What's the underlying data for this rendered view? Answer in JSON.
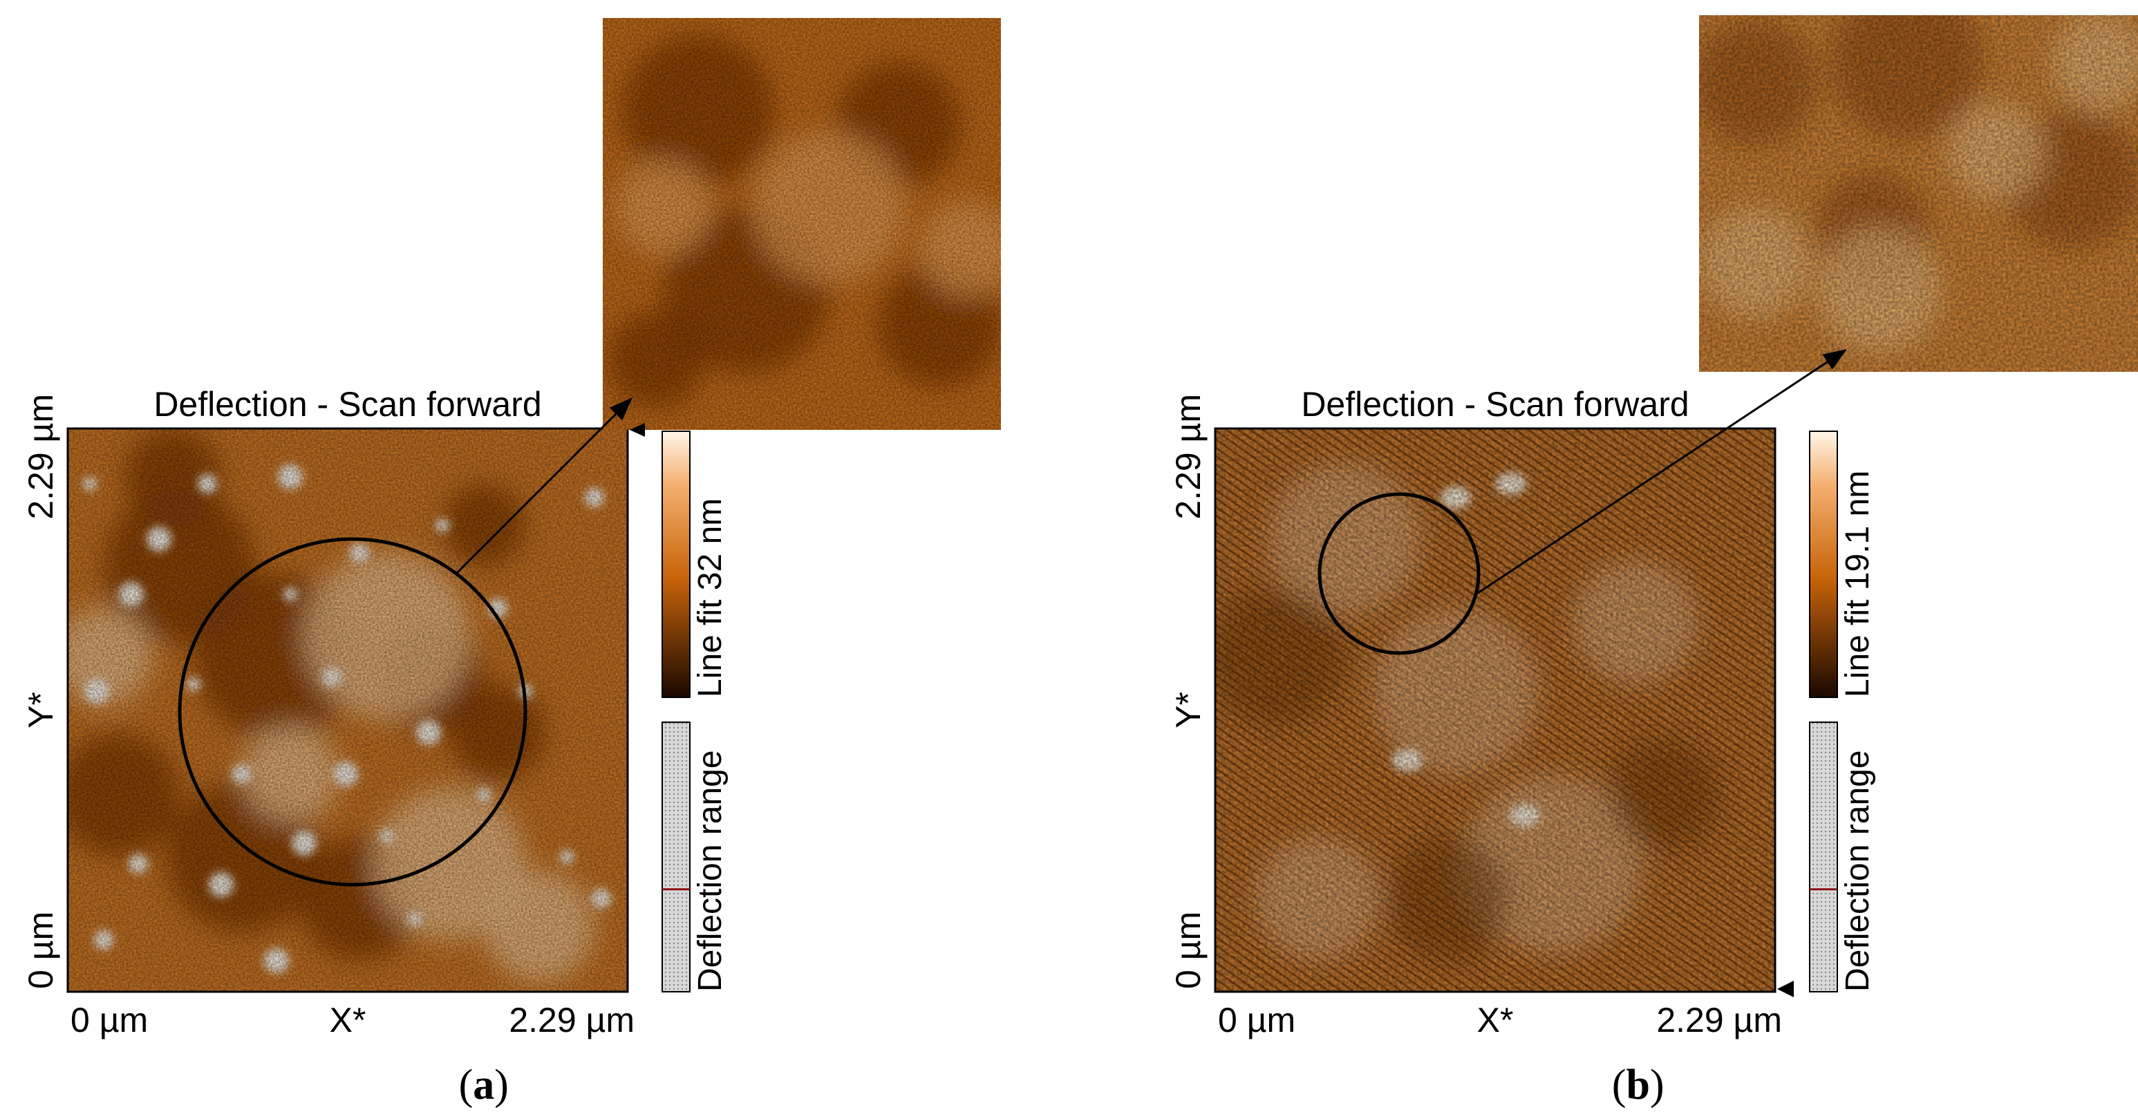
{
  "panels": [
    {
      "id": "a",
      "title": "Deflection - Scan forward",
      "x_axis": {
        "min_label": "0 µm",
        "name": "X*",
        "max_label": "2.29 µm"
      },
      "y_axis": {
        "min_label": "0 µm",
        "name": "Y*",
        "max_label": "2.29 µm"
      },
      "colorbar_label": "Line fit 32 nm",
      "range_bar_label": "Deflection range",
      "caption_letter": "a"
    },
    {
      "id": "b",
      "title": "Deflection - Scan forward",
      "x_axis": {
        "min_label": "0 µm",
        "name": "X*",
        "max_label": "2.29 µm"
      },
      "y_axis": {
        "min_label": "0 µm",
        "name": "Y*",
        "max_label": "2.29 µm"
      },
      "colorbar_label": "Line fit 19.1 nm",
      "range_bar_label": "Deflection range",
      "caption_letter": "b"
    }
  ],
  "colors": {
    "afm_dark": "#3a1a00",
    "afm_mid": "#c8640a",
    "afm_light": "#ffe8c8",
    "frame": "#000000"
  }
}
